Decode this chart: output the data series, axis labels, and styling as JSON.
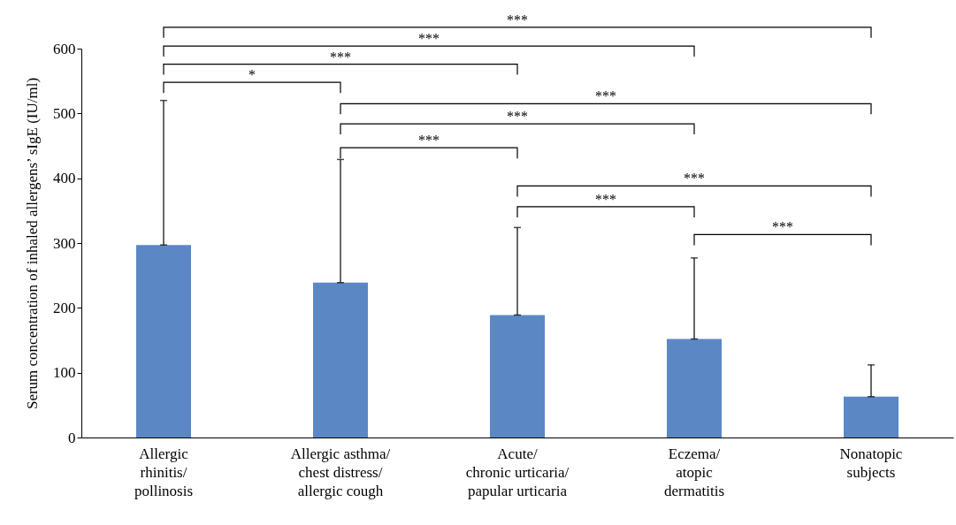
{
  "chart_data": {
    "type": "bar",
    "ylabel": "Serum concentration of inhaled allergens’ sIgE (IU/ml)",
    "categories": [
      "Allergic\nrhinitis/\npollinosis",
      "Allergic asthma/\nchest distress/\nallergic cough",
      "Acute/\nchronic urticaria/\npapular urticaria",
      "Eczema/\natopic\ndermatitis",
      "Nonatopic\nsubjects"
    ],
    "values": [
      297,
      239,
      189,
      152,
      63
    ],
    "errors": [
      [
        297,
        520
      ],
      [
        239,
        429
      ],
      [
        189,
        324
      ],
      [
        152,
        277
      ],
      [
        63,
        112
      ]
    ],
    "color": "#5b87c5",
    "ylim": [
      0,
      600
    ],
    "yticks": [
      0,
      100,
      200,
      300,
      400,
      500,
      600
    ],
    "grid": false,
    "annotations": [
      "***",
      "***",
      "***",
      "*",
      "***",
      "***",
      "***",
      "***",
      "***",
      "***"
    ]
  }
}
